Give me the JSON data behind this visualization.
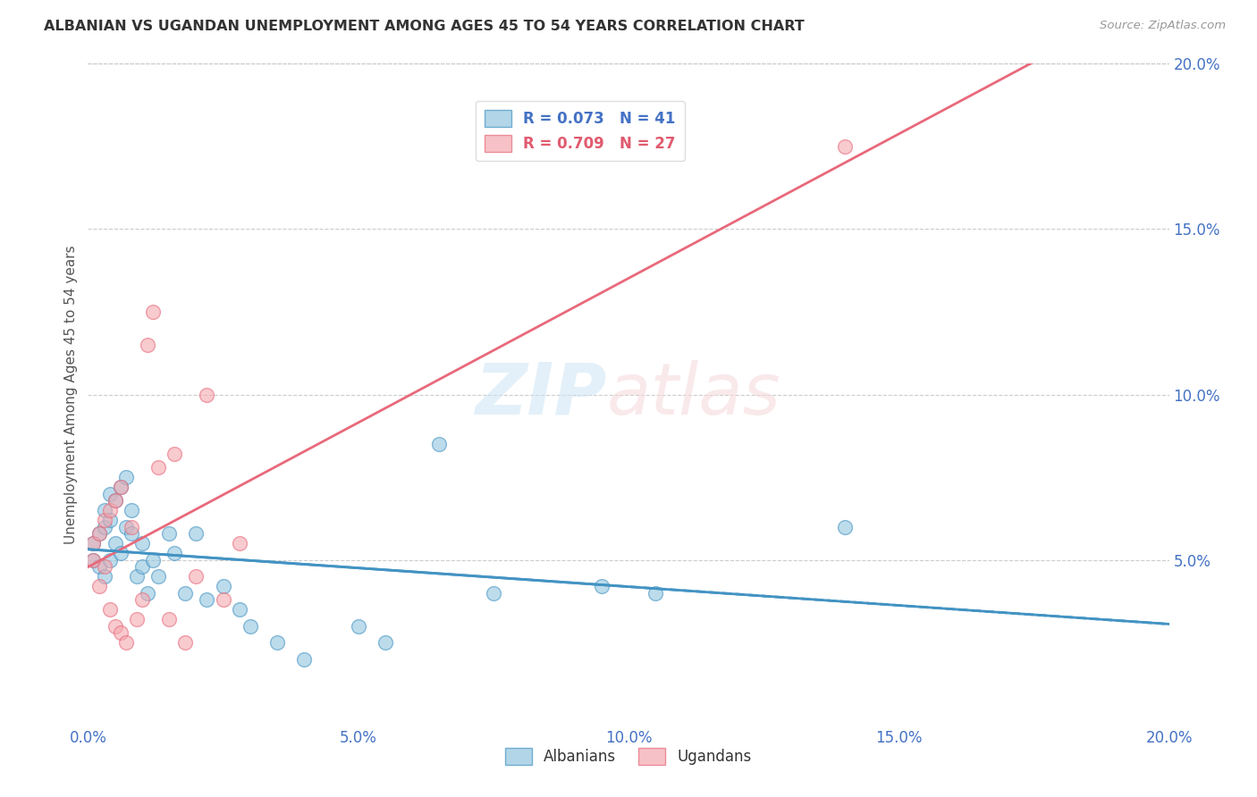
{
  "title": "ALBANIAN VS UGANDAN UNEMPLOYMENT AMONG AGES 45 TO 54 YEARS CORRELATION CHART",
  "source": "Source: ZipAtlas.com",
  "ylabel": "Unemployment Among Ages 45 to 54 years",
  "xlim": [
    0.0,
    0.2
  ],
  "ylim": [
    0.0,
    0.2
  ],
  "xticks": [
    0.0,
    0.05,
    0.1,
    0.15,
    0.2
  ],
  "yticks": [
    0.05,
    0.1,
    0.15,
    0.2
  ],
  "xticklabels": [
    "0.0%",
    "5.0%",
    "10.0%",
    "15.0%",
    "20.0%"
  ],
  "yticklabels": [
    "5.0%",
    "10.0%",
    "15.0%",
    "20.0%"
  ],
  "albanian_color": "#92c5de",
  "ugandan_color": "#f4a9b0",
  "albanian_line_color": "#4393c3",
  "ugandan_line_color": "#e8697a",
  "albanian_R": 0.073,
  "albanian_N": 41,
  "ugandan_R": 0.709,
  "ugandan_N": 27,
  "albanian_x": [
    0.001,
    0.001,
    0.002,
    0.002,
    0.003,
    0.003,
    0.003,
    0.004,
    0.004,
    0.004,
    0.005,
    0.005,
    0.006,
    0.006,
    0.007,
    0.007,
    0.008,
    0.008,
    0.009,
    0.01,
    0.01,
    0.011,
    0.012,
    0.013,
    0.015,
    0.016,
    0.018,
    0.02,
    0.022,
    0.025,
    0.028,
    0.03,
    0.035,
    0.04,
    0.05,
    0.055,
    0.065,
    0.075,
    0.095,
    0.105,
    0.14
  ],
  "albanian_y": [
    0.05,
    0.055,
    0.048,
    0.058,
    0.045,
    0.06,
    0.065,
    0.05,
    0.062,
    0.07,
    0.055,
    0.068,
    0.052,
    0.072,
    0.06,
    0.075,
    0.058,
    0.065,
    0.045,
    0.048,
    0.055,
    0.04,
    0.05,
    0.045,
    0.058,
    0.052,
    0.04,
    0.058,
    0.038,
    0.042,
    0.035,
    0.03,
    0.025,
    0.02,
    0.03,
    0.025,
    0.085,
    0.04,
    0.042,
    0.04,
    0.06
  ],
  "ugandan_x": [
    0.001,
    0.001,
    0.002,
    0.002,
    0.003,
    0.003,
    0.004,
    0.004,
    0.005,
    0.005,
    0.006,
    0.006,
    0.007,
    0.008,
    0.009,
    0.01,
    0.011,
    0.012,
    0.013,
    0.015,
    0.016,
    0.018,
    0.02,
    0.022,
    0.025,
    0.028,
    0.14
  ],
  "ugandan_y": [
    0.05,
    0.055,
    0.042,
    0.058,
    0.048,
    0.062,
    0.035,
    0.065,
    0.03,
    0.068,
    0.028,
    0.072,
    0.025,
    0.06,
    0.032,
    0.038,
    0.115,
    0.125,
    0.078,
    0.032,
    0.082,
    0.025,
    0.045,
    0.1,
    0.038,
    0.055,
    0.175
  ]
}
